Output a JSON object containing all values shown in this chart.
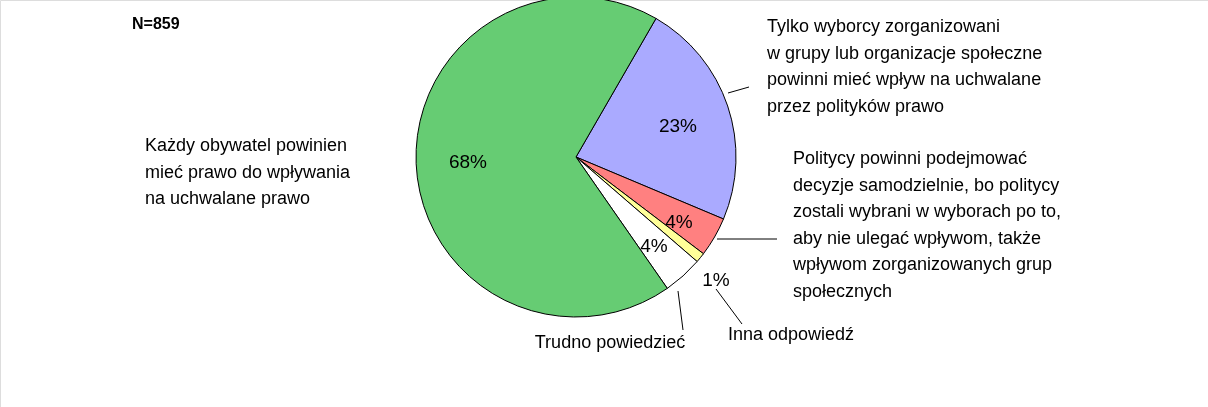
{
  "chart_data": {
    "type": "pie",
    "categories": [
      "Tylko wyborcy zorganizowani\nw grupy lub organizacje społeczne\npowinni mieć wpływ na uchwalane\nprzez polityków prawo",
      "Politycy powinni podejmować\ndecyzje samodzielnie, bo politycy\nzostali wybrani w wyborach po to,\naby nie ulegać wpływom, także\nwpływom zorganizowanych grup\nspołecznych",
      "Inna odpowiedź",
      "Trudno powiedzieć",
      "Każdy obywatel powinien\nmieć prawo do wpływania\nna uchwalane prawo"
    ],
    "values": [
      23,
      4,
      1,
      4,
      68
    ],
    "colors": [
      "#aaaaff",
      "#ff8080",
      "#ffff99",
      "#ffffff",
      "#66cc73"
    ],
    "value_labels": [
      "23%",
      "4%",
      "1%",
      "4%",
      "68%"
    ],
    "annotations": [
      "N=859"
    ]
  }
}
